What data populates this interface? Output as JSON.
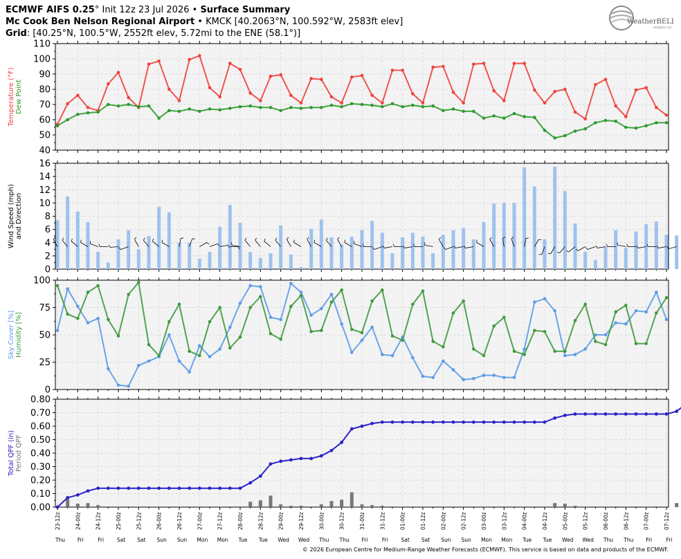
{
  "header": {
    "line1_model": "ECMWF AIFS 0.25",
    "line1_init": "Init 12z 23 Jul 2026",
    "line1_product": "Surface Summary",
    "line2_station": "Mc Cook Ben Nelson Regional Airport",
    "line2_details": "KMCK [40.2063°N, 100.592°W, 2583ft elev]",
    "line3_label": "Grid",
    "line3_details": "[40.25°N, 100.5°W, 2552ft elev, 5.72mi to the ENE (58.1°)]"
  },
  "logo": {
    "text": "WeatherBELL",
    "sub": "Analytics LLC"
  },
  "footer": {
    "copyright": "© 2026 European Centre for Medium-Range Weather Forecasts (ECMWF). This service is based on data and products of the ECMWF."
  },
  "colors": {
    "temp": "#f0413c",
    "dew": "#2e9a2e",
    "wind": "#9fc2ee",
    "sky": "#5b9be8",
    "humidity": "#3e9a3e",
    "qpf_total": "#2b22c8",
    "qpf_period": "#777777"
  },
  "chart_data": {
    "x_tick_labels": [
      "23-12z",
      "24-00z",
      "24-12z",
      "25-00z",
      "25-12z",
      "26-00z",
      "26-12z",
      "27-00z",
      "27-12z",
      "28-00z",
      "28-12z",
      "29-00z",
      "29-12z",
      "30-00z",
      "30-12z",
      "31-00z",
      "31-12z",
      "01-00z",
      "01-12z",
      "02-00z",
      "02-12z",
      "03-00z",
      "03-12z",
      "04-00z",
      "04-12z",
      "05-00z",
      "05-12z",
      "06-00z",
      "06-12z",
      "07-00z",
      "07-12z"
    ],
    "day_labels": [
      "Thu",
      "Fri",
      "Fri",
      "Sat",
      "Sat",
      "Sun",
      "Sun",
      "Mon",
      "Mon",
      "Tue",
      "Tue",
      "Wed",
      "Wed",
      "Thu",
      "Thu",
      "Fri",
      "Fri",
      "Sat",
      "Sat",
      "Sun",
      "Sun",
      "Mon",
      "Mon",
      "Tue",
      "Tue",
      "Wed",
      "Wed",
      "Thu",
      "Thu",
      "Fri",
      "Fri"
    ],
    "panels": [
      {
        "type": "line",
        "ylabel_parts": [
          "Temperature (°F)",
          "Dew Point"
        ],
        "ylim": [
          40,
          110
        ],
        "yticks": [
          "40",
          "50",
          "60",
          "70",
          "80",
          "90",
          "100",
          "110"
        ],
        "series": [
          {
            "name": "Temperature (°F)",
            "values": [
              57,
              70.5,
              76,
              68,
              66,
              83.5,
              91,
              74.5,
              68,
              96.5,
              98.5,
              80,
              72.5,
              99.5,
              102,
              81,
              75,
              97,
              93,
              77.5,
              72.5,
              88.5,
              89.5,
              76,
              71,
              87,
              86.5,
              75,
              71,
              88,
              89,
              76,
              71,
              92.5,
              92.5,
              77,
              71,
              94.5,
              95,
              78,
              71,
              96.5,
              97,
              79,
              72.5,
              97,
              97,
              79.5,
              71,
              78.5,
              80,
              65,
              60.5,
              83,
              86.5,
              69,
              62,
              79.5,
              81,
              68,
              63
            ]
          },
          {
            "name": "Dew Point",
            "values": [
              56,
              60,
              63.5,
              64.5,
              65,
              70,
              69,
              70,
              68.5,
              69,
              61,
              66,
              65.5,
              67,
              65.5,
              67,
              66.5,
              67.5,
              68.5,
              69,
              68,
              68,
              66,
              68,
              67.5,
              68,
              68,
              69.5,
              68.5,
              70.5,
              70,
              69.5,
              68.5,
              70.5,
              68.5,
              69.5,
              68.5,
              69,
              66,
              67,
              65.5,
              65.5,
              61,
              62.5,
              61,
              64,
              62,
              61.5,
              53,
              48,
              49.5,
              52.5,
              54,
              58,
              59.5,
              59,
              55,
              54.5,
              56,
              58,
              58
            ]
          }
        ]
      },
      {
        "type": "bar",
        "ylabel_parts": [
          "Wind Speed (mph)",
          "and Direction"
        ],
        "ylim": [
          0,
          16
        ],
        "yticks": [
          "0",
          "2",
          "4",
          "6",
          "8",
          "10",
          "12",
          "14",
          "16"
        ],
        "series": [
          {
            "name": "Wind Speed (mph)",
            "values": [
              7.4,
              11,
              8.7,
              7.1,
              2.6,
              1,
              4.5,
              5.9,
              3,
              5,
              9.4,
              8.6,
              4,
              4,
              1.6,
              2.6,
              6.4,
              9.7,
              7,
              2.6,
              1.7,
              2.4,
              6.6,
              2.2,
              0.3,
              6.1,
              7.5,
              4.8,
              3.7,
              4.9,
              5.9,
              7.3,
              5.5,
              2.4,
              4.8,
              5.5,
              4.9,
              2.4,
              5.2,
              5.9,
              6.2,
              4.5,
              7.1,
              9.9,
              10,
              10,
              15.4,
              12.5,
              4.5,
              15.5,
              11.8,
              6.9,
              2.6,
              1.4,
              3.4,
              5.9,
              3.2,
              5.7,
              6.8,
              7.2,
              5.2,
              5.1
            ]
          }
        ],
        "wind_direction_deg": [
          330,
          320,
          310,
          300,
          290,
          270,
          265,
          250,
          330,
          320,
          310,
          300,
          10,
          20,
          60,
          70,
          80,
          90,
          280,
          320,
          320,
          310,
          320,
          330,
          300,
          330,
          300,
          320,
          330,
          300,
          290,
          270,
          250,
          260,
          270,
          260,
          270,
          280,
          330,
          250,
          260,
          260,
          300,
          330,
          350,
          340,
          10,
          30,
          200,
          210,
          220,
          230,
          240,
          250,
          260,
          270,
          280,
          270,
          260,
          270,
          260,
          255
        ]
      },
      {
        "type": "line",
        "ylabel_parts": [
          "Sky Cover [%]",
          "Humidity [%]"
        ],
        "ylim": [
          0,
          100
        ],
        "yticks": [
          "0",
          "25",
          "50",
          "75",
          "100"
        ],
        "series": [
          {
            "name": "Sky Cover [%]",
            "values": [
              54,
              92,
              76,
              61,
              65,
              19,
              4,
              3,
              22,
              26,
              30,
              50,
              26,
              16,
              40,
              30,
              37,
              57,
              79,
              95,
              94,
              66,
              64,
              97,
              89,
              68,
              74,
              87,
              60,
              34,
              45,
              57,
              32,
              31,
              48,
              29,
              12,
              11,
              26,
              18,
              9,
              10,
              13,
              13,
              11,
              11,
              37,
              80,
              83,
              72,
              31,
              32,
              37,
              50,
              50,
              61,
              60,
              72,
              71,
              89,
              64
            ]
          },
          {
            "name": "Humidity [%]",
            "values": [
              95,
              69,
              65,
              89,
              95,
              64,
              49,
              87,
              98,
              41,
              31,
              62,
              78,
              35,
              31,
              62,
              75,
              38,
              48,
              75,
              85,
              51,
              46,
              76,
              86,
              53,
              54,
              80,
              91,
              55,
              52,
              81,
              91,
              49,
              45,
              78,
              90,
              44,
              39,
              70,
              81,
              37,
              31,
              58,
              66,
              35,
              32,
              54,
              53,
              35,
              35,
              63,
              78,
              44,
              41,
              71,
              77,
              42,
              42,
              70,
              84
            ]
          }
        ]
      },
      {
        "type": "area",
        "ylabel_parts": [
          "Total QPF (in)",
          "Period QPF"
        ],
        "ylim": [
          0,
          0.8
        ],
        "yticks": [
          "0.00",
          "0.10",
          "0.20",
          "0.30",
          "0.40",
          "0.50",
          "0.60",
          "0.70",
          "0.80"
        ],
        "series": [
          {
            "name": "Total QPF (in)",
            "values": [
              0,
              0.07,
              0.09,
              0.12,
              0.14,
              0.14,
              0.14,
              0.14,
              0.14,
              0.14,
              0.14,
              0.14,
              0.14,
              0.14,
              0.14,
              0.14,
              0.14,
              0.14,
              0.14,
              0.18,
              0.23,
              0.32,
              0.34,
              0.35,
              0.36,
              0.36,
              0.38,
              0.42,
              0.48,
              0.58,
              0.6,
              0.62,
              0.63,
              0.63,
              0.63,
              0.63,
              0.63,
              0.63,
              0.63,
              0.63,
              0.63,
              0.63,
              0.63,
              0.63,
              0.63,
              0.63,
              0.63,
              0.63,
              0.63,
              0.66,
              0.68,
              0.69,
              0.69,
              0.69,
              0.69,
              0.69,
              0.69,
              0.69,
              0.69,
              0.69,
              0.69,
              0.71,
              0.77
            ]
          },
          {
            "name": "Period QPF",
            "values": [
              0,
              0.06,
              0.025,
              0.03,
              0.015,
              0,
              0,
              0,
              0,
              0,
              0,
              0,
              0,
              0,
              0,
              0,
              0,
              0,
              0,
              0.04,
              0.05,
              0.085,
              0.02,
              0.01,
              0.01,
              0,
              0.02,
              0.045,
              0.055,
              0.11,
              0.02,
              0.015,
              0.01,
              0,
              0,
              0,
              0,
              0,
              0,
              0,
              0,
              0,
              0,
              0,
              0,
              0,
              0,
              0,
              0,
              0.03,
              0.025,
              0.01,
              0,
              0,
              0,
              0,
              0,
              0,
              0,
              0,
              0,
              0.03,
              0.055
            ]
          }
        ]
      }
    ]
  }
}
